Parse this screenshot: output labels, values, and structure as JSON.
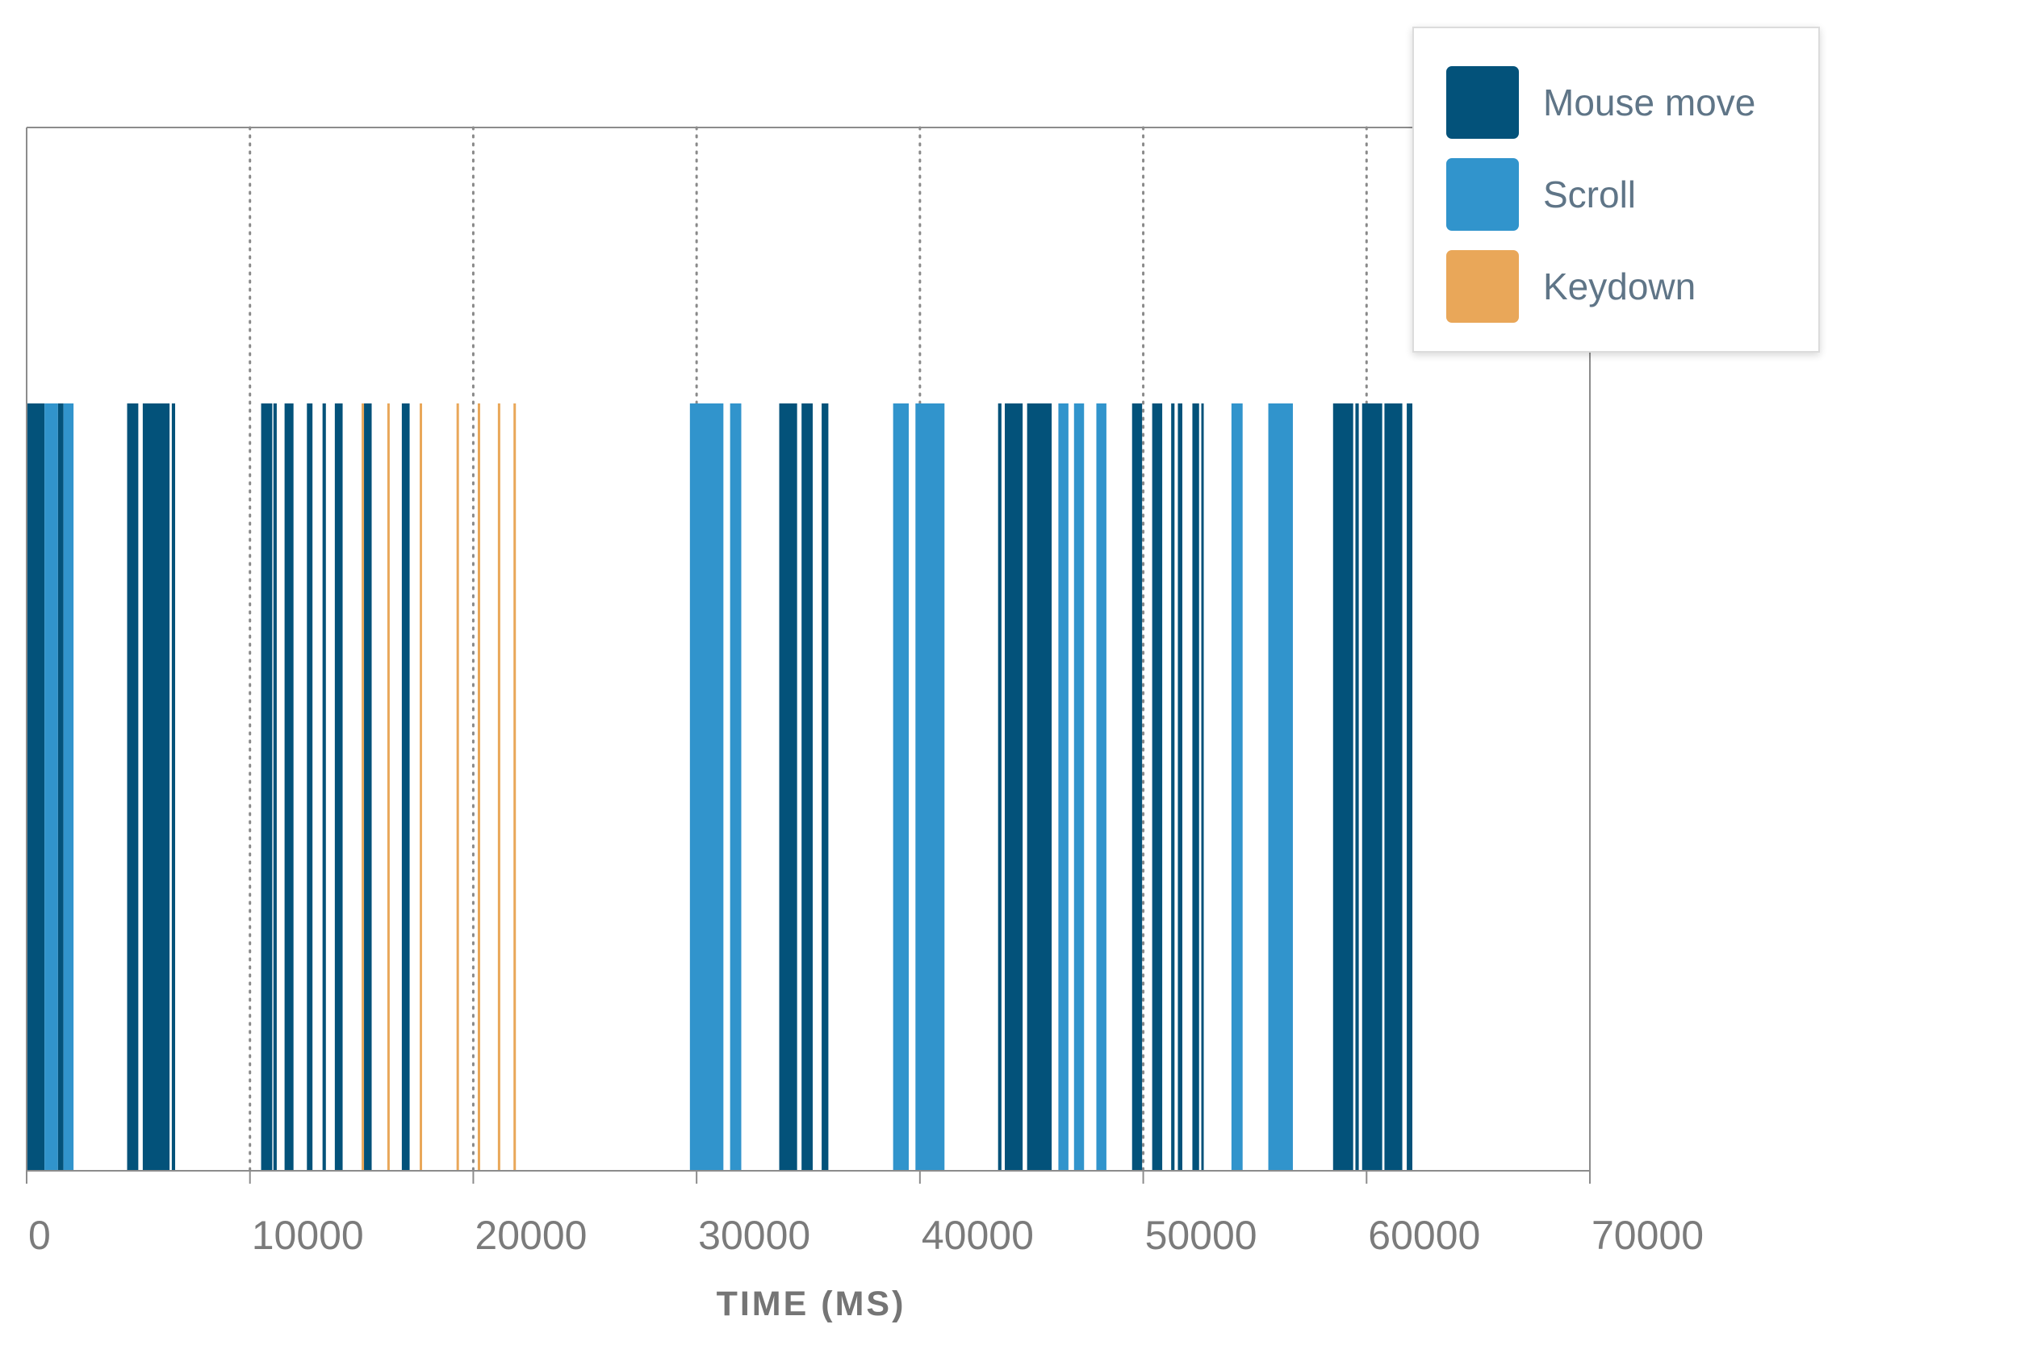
{
  "chart_data": {
    "type": "event-timeline",
    "xlabel": "TIME (MS)",
    "xlim": [
      0,
      70000
    ],
    "x_ticks": [
      0,
      10000,
      20000,
      30000,
      40000,
      50000,
      60000,
      70000
    ],
    "x_tick_labels": [
      "0",
      "10000",
      "20000",
      "30000",
      "40000",
      "50000",
      "60000",
      "70000"
    ],
    "gridlines": [
      10000,
      20000,
      30000,
      40000,
      50000,
      60000
    ],
    "grid": "vertical dotted",
    "legend_placement": "top-right",
    "series": [
      {
        "name": "Mouse move",
        "color": "#03527a",
        "events": [
          [
            0,
            800
          ],
          [
            1400,
            1650
          ],
          [
            4500,
            5000
          ],
          [
            5200,
            6400
          ],
          [
            6500,
            6650
          ],
          [
            10500,
            11000
          ],
          [
            11050,
            11200
          ],
          [
            11550,
            11950
          ],
          [
            12550,
            12800
          ],
          [
            13250,
            13400
          ],
          [
            13800,
            14150
          ],
          [
            15100,
            15450
          ],
          [
            16800,
            17150
          ],
          [
            33700,
            34500
          ],
          [
            34700,
            35200
          ],
          [
            35600,
            35900
          ],
          [
            43500,
            43650
          ],
          [
            43800,
            44600
          ],
          [
            44800,
            45900
          ],
          [
            49500,
            49950
          ],
          [
            50400,
            50850
          ],
          [
            51250,
            51400
          ],
          [
            51550,
            51750
          ],
          [
            52200,
            52500
          ],
          [
            52600,
            52700
          ],
          [
            58500,
            59400
          ],
          [
            59500,
            59650
          ],
          [
            59800,
            60700
          ],
          [
            60800,
            61600
          ],
          [
            61800,
            62050
          ]
        ]
      },
      {
        "name": "Scroll",
        "color": "#3194cc",
        "events": [
          [
            800,
            1400
          ],
          [
            1650,
            2100
          ],
          [
            29700,
            31200
          ],
          [
            31500,
            32000
          ],
          [
            38800,
            39500
          ],
          [
            39800,
            41100
          ],
          [
            46200,
            46650
          ],
          [
            46900,
            47350
          ],
          [
            47900,
            48350
          ],
          [
            53950,
            54450
          ],
          [
            55600,
            56700
          ]
        ]
      },
      {
        "name": "Keydown",
        "color": "#e9a759",
        "events": [
          [
            15000,
            15070
          ],
          [
            16150,
            16220
          ],
          [
            17600,
            17670
          ],
          [
            19250,
            19320
          ],
          [
            20200,
            20270
          ],
          [
            21100,
            21170
          ],
          [
            21800,
            21870
          ]
        ]
      }
    ]
  }
}
